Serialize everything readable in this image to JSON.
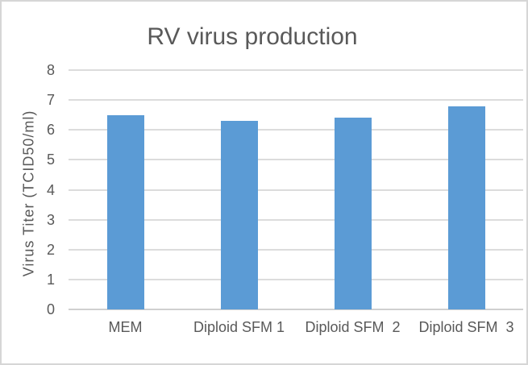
{
  "chart_data": {
    "type": "bar",
    "title": "RV virus production",
    "categories": [
      "MEM",
      "Diploid SFM 1",
      "Diploid SFM  2",
      "Diploid SFM  3"
    ],
    "values": [
      6.5,
      6.3,
      6.4,
      6.8
    ],
    "xlabel": "",
    "ylabel": "Virus Titer (TCID50/ml)",
    "ylim": [
      0,
      8
    ],
    "yticks": [
      0,
      1,
      2,
      3,
      4,
      5,
      6,
      7,
      8
    ],
    "grid": true,
    "legend": "none",
    "colors": {
      "bar": "#5b9bd5",
      "gridline": "#dcdcdc",
      "axis_line": "#d0d0d0",
      "text": "#595959",
      "frame_border": "#d6d6d6",
      "background": "#ffffff"
    }
  }
}
